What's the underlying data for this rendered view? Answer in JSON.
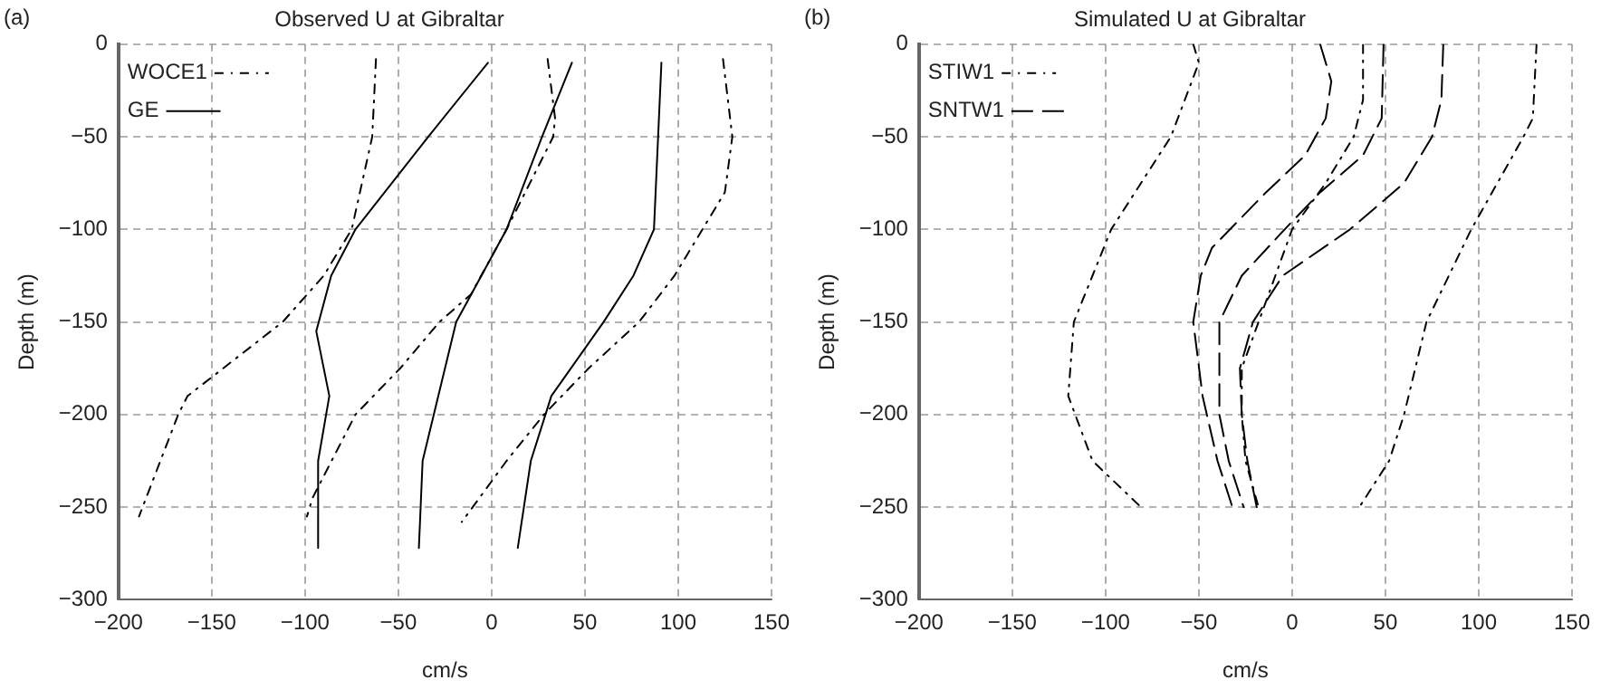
{
  "chart_data": [
    {
      "type": "line",
      "title": "Observed U at Gibraltar",
      "xlabel": "cm/s",
      "ylabel": "Depth (m)",
      "annotations": [
        "(a)"
      ],
      "xlim": [
        -200,
        150
      ],
      "xticks": [
        -200,
        -150,
        -100,
        -50,
        0,
        50,
        100,
        150
      ],
      "ylim": [
        -300,
        0
      ],
      "yticks": [
        -300,
        -250,
        -200,
        -150,
        -100,
        -50,
        0
      ],
      "grid": true,
      "legend": "top left",
      "marker": "none",
      "series": [
        {
          "name": "WOCE1",
          "color": "#000000",
          "line_style": "dotted",
          "x": [
            -62,
            -64,
            -75,
            -90,
            -112,
            -163,
            -168,
            -189
          ],
          "values": [
            -8,
            -50,
            -100,
            -125,
            -150,
            -190,
            -200,
            -255
          ]
        },
        {
          "name": "GE",
          "color": "#000000",
          "line_style": "solid",
          "x": [
            -2,
            -34,
            -73,
            -86,
            -94,
            -87,
            -93,
            -93
          ],
          "values": [
            -10,
            -50,
            -100,
            -125,
            -155,
            -190,
            -225,
            -272
          ]
        },
        {
          "color": "#000000",
          "line_style": "dotted",
          "x": [
            30,
            34,
            33,
            8,
            -11,
            -28,
            -49,
            -73,
            -96,
            -99
          ],
          "values": [
            -8,
            -40,
            -50,
            -100,
            -135,
            -150,
            -175,
            -200,
            -245,
            -255
          ]
        },
        {
          "color": "#000000",
          "line_style": "solid",
          "x": [
            43,
            27,
            8,
            -19,
            -37,
            -39
          ],
          "values": [
            -10,
            -50,
            -100,
            -150,
            -225,
            -272
          ]
        },
        {
          "color": "#000000",
          "line_style": "dotted",
          "x": [
            124,
            129,
            125,
            113,
            98,
            79,
            52,
            28,
            8,
            -16
          ],
          "values": [
            -8,
            -50,
            -80,
            -100,
            -125,
            -150,
            -175,
            -200,
            -225,
            -258
          ]
        },
        {
          "color": "#000000",
          "line_style": "solid",
          "x": [
            91,
            87,
            76,
            60,
            32,
            21,
            14
          ],
          "values": [
            -10,
            -100,
            -125,
            -150,
            -190,
            -225,
            -272
          ]
        }
      ]
    },
    {
      "type": "line",
      "title": "Simulated U at Gibraltar",
      "xlabel": "cm/s",
      "ylabel": "Depth (m)",
      "annotations": [
        "(b)"
      ],
      "xlim": [
        -200,
        150
      ],
      "xticks": [
        -200,
        -150,
        -100,
        -50,
        0,
        50,
        100,
        150
      ],
      "ylim": [
        -300,
        0
      ],
      "yticks": [
        -300,
        -250,
        -200,
        -150,
        -100,
        -50,
        0
      ],
      "grid": true,
      "legend": "top left",
      "marker": "none",
      "series": [
        {
          "name": "STIW1",
          "color": "#000000",
          "line_style": "dotted",
          "x": [
            -53,
            -50,
            -65,
            -97,
            -117,
            -120,
            -107,
            -81
          ],
          "values": [
            0,
            -10,
            -50,
            -100,
            -150,
            -190,
            -225,
            -250
          ]
        },
        {
          "name": "SNTW1",
          "color": "#000000",
          "line_style": "dashed",
          "x": [
            15,
            21,
            18,
            7,
            -14,
            -43,
            -49,
            -53,
            -48,
            -40,
            -32
          ],
          "values": [
            0,
            -20,
            -40,
            -60,
            -80,
            -110,
            -125,
            -150,
            -190,
            -225,
            -250
          ]
        },
        {
          "color": "#000000",
          "line_style": "dotted",
          "x": [
            38,
            38,
            33,
            18,
            0,
            -9,
            -18,
            -27,
            -27,
            -25,
            -18
          ],
          "values": [
            0,
            -30,
            -50,
            -75,
            -100,
            -125,
            -150,
            -175,
            -200,
            -225,
            -250
          ]
        },
        {
          "color": "#000000",
          "line_style": "dashed",
          "x": [
            49,
            48,
            38,
            15,
            -4,
            -27,
            -39,
            -39,
            -34,
            -26
          ],
          "values": [
            0,
            -40,
            -60,
            -80,
            -100,
            -125,
            -150,
            -200,
            -225,
            -250
          ]
        },
        {
          "color": "#000000",
          "line_style": "dotted",
          "x": [
            131,
            129,
            124,
            96,
            72,
            60,
            52,
            36
          ],
          "values": [
            0,
            -40,
            -50,
            -100,
            -150,
            -200,
            -225,
            -250
          ]
        },
        {
          "color": "#000000",
          "line_style": "dashed",
          "x": [
            81,
            80,
            75,
            60,
            31,
            -5,
            -21,
            -28,
            -27,
            -24,
            -19
          ],
          "values": [
            0,
            -30,
            -50,
            -75,
            -100,
            -125,
            -150,
            -175,
            -200,
            -225,
            -250
          ]
        }
      ]
    }
  ]
}
